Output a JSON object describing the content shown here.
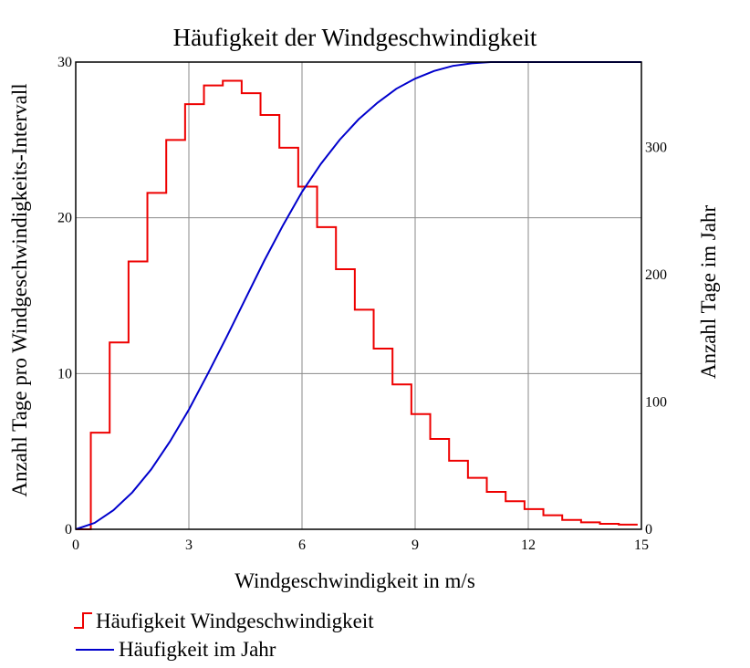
{
  "chart_data": {
    "type": "line",
    "title": "Häufigkeit der Windgeschwindigkeit",
    "xlabel": "Windgeschwindigkeit in m/s",
    "ylabel_left": "Anzahl Tage pro Windgeschwindigkeits-Intervall",
    "ylabel_right": "Anzahl Tage im Jahr",
    "xlim": [
      0,
      15
    ],
    "ylim_left": [
      0,
      30
    ],
    "ylim_right": [
      0,
      367
    ],
    "x_ticks": [
      "0",
      "3",
      "6",
      "9",
      "12",
      "15"
    ],
    "y_left_ticks": [
      "0",
      "10",
      "20",
      "30"
    ],
    "y_right_ticks": [
      "0",
      "100",
      "200",
      "300"
    ],
    "grid": true,
    "legend_position": "bottom-left",
    "series": [
      {
        "name": "Häufigkeit Windgeschwindigkeit",
        "axis": "left",
        "style": "step",
        "color": "#ee0000",
        "bin_width": 0.5,
        "x_start": [
          0.4,
          0.9,
          1.4,
          1.9,
          2.4,
          2.9,
          3.4,
          3.9,
          4.4,
          4.9,
          5.4,
          5.9,
          6.4,
          6.9,
          7.4,
          7.9,
          8.4,
          8.9,
          9.4,
          9.9,
          10.4,
          10.9,
          11.4,
          11.9,
          12.4,
          12.9,
          13.4,
          13.9,
          14.4
        ],
        "values": [
          6.2,
          12.0,
          17.2,
          21.6,
          25.0,
          27.3,
          28.5,
          28.8,
          28.0,
          26.6,
          24.5,
          22.0,
          19.4,
          16.7,
          14.1,
          11.6,
          9.3,
          7.4,
          5.8,
          4.4,
          3.3,
          2.4,
          1.8,
          1.3,
          0.9,
          0.6,
          0.45,
          0.35,
          0.3
        ]
      },
      {
        "name": "Häufigkeit im Jahr",
        "axis": "right",
        "style": "line",
        "color": "#0000cc",
        "x": [
          0,
          0.5,
          1,
          1.5,
          2,
          2.5,
          3,
          3.5,
          4,
          4.5,
          5,
          5.5,
          6,
          6.5,
          7,
          7.5,
          8,
          8.5,
          9,
          9.5,
          10,
          10.5,
          11,
          11.5,
          12,
          12.5,
          13,
          13.5,
          14,
          14.5,
          15
        ],
        "values": [
          0,
          5,
          15,
          29,
          47,
          69,
          94,
          122,
          151,
          181,
          211,
          239,
          265,
          287,
          306,
          322,
          335,
          346,
          354,
          360,
          364,
          366,
          367,
          367,
          367,
          367,
          367,
          367,
          367,
          367,
          367
        ]
      }
    ]
  }
}
